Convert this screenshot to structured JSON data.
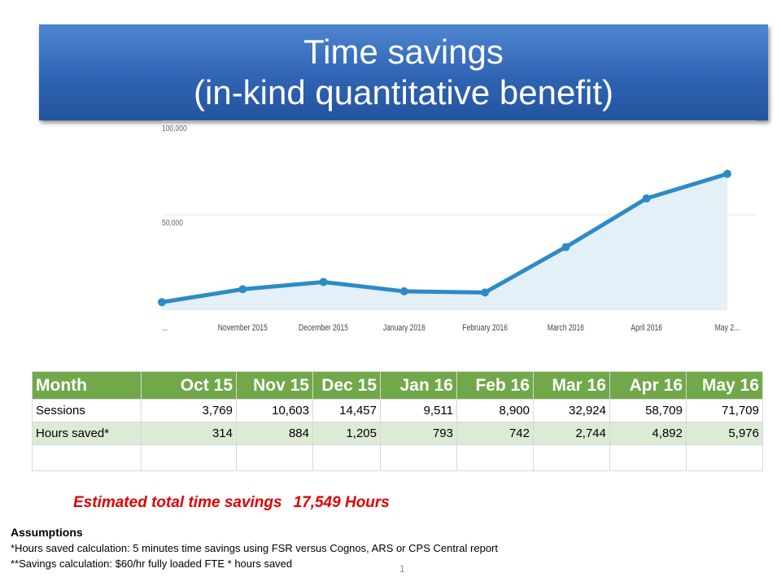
{
  "slide": {
    "title_line1": "Time savings",
    "title_line2": "(in-kind quantitative benefit)",
    "page_number": "1"
  },
  "chart_data": {
    "type": "area",
    "x": [
      "...",
      "November 2015",
      "December 2015",
      "January 2016",
      "February 2016",
      "March 2016",
      "April 2016",
      "May 2..."
    ],
    "values": [
      3769,
      10603,
      14457,
      9511,
      8900,
      32924,
      58709,
      71709
    ],
    "y_ticks": [
      "100,000",
      "50,000"
    ],
    "ylim": [
      0,
      100000
    ],
    "line_color": "#2e8ac6",
    "fill_color": "#e3f0f8",
    "grid": true
  },
  "table": {
    "header": [
      "Month",
      "Oct 15",
      "Nov 15",
      "Dec 15",
      "Jan 16",
      "Feb 16",
      "Mar 16",
      "Apr 16",
      "May 16"
    ],
    "sessions": {
      "label": "Sessions",
      "values": [
        "3,769",
        "10,603",
        "14,457",
        "9,511",
        "8,900",
        "32,924",
        "58,709",
        "71,709"
      ]
    },
    "hours": {
      "label": "Hours saved*",
      "values": [
        "314",
        "884",
        "1,205",
        "793",
        "742",
        "2,744",
        "4,892",
        "5,976"
      ]
    }
  },
  "summary": {
    "label": "Estimated total time savings",
    "value": "17,549 Hours"
  },
  "assumptions": {
    "heading": "Assumptions",
    "line1": "*Hours saved calculation: 5 minutes time savings using FSR versus Cognos, ARS or CPS Central report",
    "line2": "**Savings calculation: $60/hr fully loaded FTE * hours saved"
  },
  "colors": {
    "banner": "#2f64b4",
    "table_header": "#70a84a",
    "table_alt_row": "#dcebd5",
    "summary_text": "#e00000"
  }
}
